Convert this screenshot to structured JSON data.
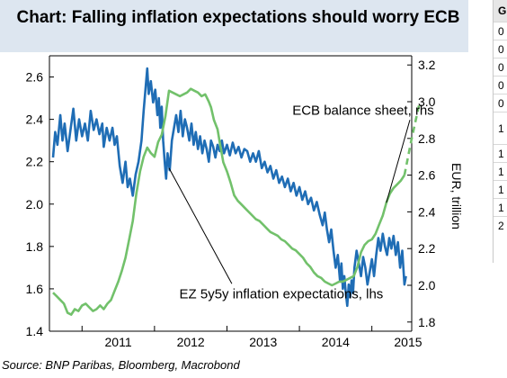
{
  "chart_data": {
    "type": "line",
    "title": "Chart:  Falling inflation expectations should worry ECB",
    "source": "Source: BNP Paribas, Bloomberg, Macrobond",
    "xlabel": "",
    "x_ticks": [
      "2011",
      "2012",
      "2013",
      "2014",
      "2015"
    ],
    "xlim": [
      2010.55,
      2015.55
    ],
    "left_axis": {
      "label": "",
      "ylim": [
        1.4,
        2.7
      ],
      "ticks": [
        1.4,
        1.6,
        1.8,
        2.0,
        2.2,
        2.4,
        2.6
      ]
    },
    "right_axis": {
      "label": "EUR, trillion",
      "ylim": [
        1.75,
        3.25
      ],
      "ticks": [
        1.8,
        2.0,
        2.2,
        2.4,
        2.6,
        2.8,
        3.0,
        3.2
      ]
    },
    "grid": false,
    "series": [
      {
        "name": "EZ 5y5y inflation expectations, lhs",
        "axis": "left",
        "color": "#1f6db5",
        "points": [
          [
            2010.6,
            2.22
          ],
          [
            2010.63,
            2.34
          ],
          [
            2010.66,
            2.28
          ],
          [
            2010.7,
            2.42
          ],
          [
            2010.73,
            2.3
          ],
          [
            2010.76,
            2.38
          ],
          [
            2010.8,
            2.25
          ],
          [
            2010.84,
            2.35
          ],
          [
            2010.88,
            2.45
          ],
          [
            2010.92,
            2.3
          ],
          [
            2010.96,
            2.4
          ],
          [
            2011.0,
            2.32
          ],
          [
            2011.04,
            2.38
          ],
          [
            2011.08,
            2.3
          ],
          [
            2011.12,
            2.44
          ],
          [
            2011.16,
            2.35
          ],
          [
            2011.2,
            2.4
          ],
          [
            2011.24,
            2.33
          ],
          [
            2011.28,
            2.38
          ],
          [
            2011.3,
            2.27
          ],
          [
            2011.34,
            2.36
          ],
          [
            2011.38,
            2.3
          ],
          [
            2011.42,
            2.36
          ],
          [
            2011.45,
            2.28
          ],
          [
            2011.48,
            2.32
          ],
          [
            2011.52,
            2.18
          ],
          [
            2011.56,
            2.1
          ],
          [
            2011.6,
            2.2
          ],
          [
            2011.63,
            2.08
          ],
          [
            2011.66,
            2.12
          ],
          [
            2011.7,
            2.04
          ],
          [
            2011.74,
            2.14
          ],
          [
            2011.78,
            2.2
          ],
          [
            2011.82,
            2.3
          ],
          [
            2011.85,
            2.44
          ],
          [
            2011.88,
            2.56
          ],
          [
            2011.9,
            2.64
          ],
          [
            2011.92,
            2.52
          ],
          [
            2011.95,
            2.58
          ],
          [
            2011.98,
            2.48
          ],
          [
            2012.01,
            2.54
          ],
          [
            2012.04,
            2.42
          ],
          [
            2012.06,
            2.5
          ],
          [
            2012.08,
            2.36
          ],
          [
            2012.1,
            2.46
          ],
          [
            2012.12,
            2.3
          ],
          [
            2012.14,
            2.2
          ],
          [
            2012.16,
            2.12
          ],
          [
            2012.18,
            2.24
          ],
          [
            2012.21,
            2.16
          ],
          [
            2012.24,
            2.3
          ],
          [
            2012.27,
            2.36
          ],
          [
            2012.3,
            2.42
          ],
          [
            2012.33,
            2.34
          ],
          [
            2012.36,
            2.44
          ],
          [
            2012.39,
            2.32
          ],
          [
            2012.42,
            2.4
          ],
          [
            2012.45,
            2.36
          ],
          [
            2012.48,
            2.3
          ],
          [
            2012.51,
            2.38
          ],
          [
            2012.54,
            2.28
          ],
          [
            2012.57,
            2.34
          ],
          [
            2012.6,
            2.26
          ],
          [
            2012.63,
            2.32
          ],
          [
            2012.66,
            2.24
          ],
          [
            2012.69,
            2.3
          ],
          [
            2012.72,
            2.26
          ],
          [
            2012.75,
            2.2
          ],
          [
            2012.78,
            2.3
          ],
          [
            2012.81,
            2.27
          ],
          [
            2012.84,
            2.22
          ],
          [
            2012.87,
            2.28
          ],
          [
            2012.9,
            2.25
          ],
          [
            2012.93,
            2.3
          ],
          [
            2012.96,
            2.24
          ],
          [
            2013.0,
            2.28
          ],
          [
            2013.04,
            2.23
          ],
          [
            2013.08,
            2.29
          ],
          [
            2013.12,
            2.24
          ],
          [
            2013.16,
            2.27
          ],
          [
            2013.2,
            2.22
          ],
          [
            2013.24,
            2.26
          ],
          [
            2013.28,
            2.25
          ],
          [
            2013.32,
            2.2
          ],
          [
            2013.36,
            2.24
          ],
          [
            2013.4,
            2.2
          ],
          [
            2013.44,
            2.25
          ],
          [
            2013.48,
            2.17
          ],
          [
            2013.52,
            2.2
          ],
          [
            2013.56,
            2.15
          ],
          [
            2013.6,
            2.18
          ],
          [
            2013.64,
            2.12
          ],
          [
            2013.68,
            2.16
          ],
          [
            2013.72,
            2.1
          ],
          [
            2013.76,
            2.13
          ],
          [
            2013.8,
            2.08
          ],
          [
            2013.84,
            2.12
          ],
          [
            2013.88,
            2.06
          ],
          [
            2013.92,
            2.1
          ],
          [
            2013.96,
            2.04
          ],
          [
            2014.0,
            2.08
          ],
          [
            2014.04,
            2.02
          ],
          [
            2014.08,
            2.06
          ],
          [
            2014.12,
            2.0
          ],
          [
            2014.16,
            2.03
          ],
          [
            2014.2,
            1.97
          ],
          [
            2014.24,
            2.01
          ],
          [
            2014.28,
            1.95
          ],
          [
            2014.32,
            1.9
          ],
          [
            2014.35,
            1.96
          ],
          [
            2014.38,
            1.88
          ],
          [
            2014.41,
            1.82
          ],
          [
            2014.44,
            1.88
          ],
          [
            2014.47,
            1.78
          ],
          [
            2014.5,
            1.7
          ],
          [
            2014.53,
            1.76
          ],
          [
            2014.56,
            1.64
          ],
          [
            2014.58,
            1.72
          ],
          [
            2014.6,
            1.6
          ],
          [
            2014.62,
            1.66
          ],
          [
            2014.64,
            1.58
          ],
          [
            2014.66,
            1.52
          ],
          [
            2014.68,
            1.62
          ],
          [
            2014.7,
            1.56
          ],
          [
            2014.72,
            1.64
          ],
          [
            2014.74,
            1.58
          ],
          [
            2014.76,
            1.7
          ],
          [
            2014.79,
            1.78
          ],
          [
            2014.82,
            1.72
          ],
          [
            2014.85,
            1.66
          ],
          [
            2014.88,
            1.75
          ],
          [
            2014.91,
            1.7
          ],
          [
            2014.94,
            1.62
          ],
          [
            2014.97,
            1.68
          ],
          [
            2015.0,
            1.74
          ],
          [
            2015.03,
            1.66
          ],
          [
            2015.06,
            1.76
          ],
          [
            2015.09,
            1.84
          ],
          [
            2015.12,
            1.78
          ],
          [
            2015.15,
            1.86
          ],
          [
            2015.18,
            1.8
          ],
          [
            2015.21,
            1.76
          ],
          [
            2015.24,
            1.84
          ],
          [
            2015.27,
            1.79
          ],
          [
            2015.3,
            1.85
          ],
          [
            2015.33,
            1.76
          ],
          [
            2015.36,
            1.82
          ],
          [
            2015.39,
            1.7
          ],
          [
            2015.42,
            1.78
          ],
          [
            2015.45,
            1.62
          ],
          [
            2015.47,
            1.66
          ]
        ]
      },
      {
        "name": "ECB balance sheet, rhs",
        "axis": "right",
        "color": "#72c16b",
        "points": [
          [
            2010.6,
            1.96
          ],
          [
            2010.65,
            1.94
          ],
          [
            2010.7,
            1.92
          ],
          [
            2010.75,
            1.9
          ],
          [
            2010.8,
            1.85
          ],
          [
            2010.85,
            1.84
          ],
          [
            2010.9,
            1.87
          ],
          [
            2010.95,
            1.86
          ],
          [
            2011.0,
            1.89
          ],
          [
            2011.05,
            1.9
          ],
          [
            2011.1,
            1.88
          ],
          [
            2011.15,
            1.86
          ],
          [
            2011.2,
            1.87
          ],
          [
            2011.25,
            1.89
          ],
          [
            2011.3,
            1.87
          ],
          [
            2011.35,
            1.9
          ],
          [
            2011.4,
            1.92
          ],
          [
            2011.45,
            1.97
          ],
          [
            2011.5,
            2.02
          ],
          [
            2011.55,
            2.08
          ],
          [
            2011.6,
            2.15
          ],
          [
            2011.65,
            2.25
          ],
          [
            2011.7,
            2.35
          ],
          [
            2011.75,
            2.5
          ],
          [
            2011.8,
            2.62
          ],
          [
            2011.85,
            2.7
          ],
          [
            2011.9,
            2.75
          ],
          [
            2011.95,
            2.72
          ],
          [
            2012.0,
            2.7
          ],
          [
            2012.05,
            2.78
          ],
          [
            2012.1,
            2.82
          ],
          [
            2012.15,
            2.92
          ],
          [
            2012.2,
            3.06
          ],
          [
            2012.25,
            3.05
          ],
          [
            2012.3,
            3.04
          ],
          [
            2012.35,
            3.03
          ],
          [
            2012.4,
            3.04
          ],
          [
            2012.45,
            3.05
          ],
          [
            2012.5,
            3.07
          ],
          [
            2012.55,
            3.06
          ],
          [
            2012.6,
            3.05
          ],
          [
            2012.65,
            3.03
          ],
          [
            2012.7,
            3.04
          ],
          [
            2012.75,
            3.0
          ],
          [
            2012.78,
            2.97
          ],
          [
            2012.82,
            2.9
          ],
          [
            2012.87,
            2.85
          ],
          [
            2012.9,
            2.78
          ],
          [
            2012.95,
            2.67
          ],
          [
            2013.0,
            2.62
          ],
          [
            2013.05,
            2.56
          ],
          [
            2013.1,
            2.49
          ],
          [
            2013.15,
            2.46
          ],
          [
            2013.2,
            2.44
          ],
          [
            2013.25,
            2.42
          ],
          [
            2013.3,
            2.4
          ],
          [
            2013.35,
            2.38
          ],
          [
            2013.4,
            2.36
          ],
          [
            2013.45,
            2.35
          ],
          [
            2013.5,
            2.33
          ],
          [
            2013.55,
            2.31
          ],
          [
            2013.6,
            2.29
          ],
          [
            2013.65,
            2.28
          ],
          [
            2013.7,
            2.27
          ],
          [
            2013.75,
            2.25
          ],
          [
            2013.8,
            2.24
          ],
          [
            2013.85,
            2.22
          ],
          [
            2013.9,
            2.2
          ],
          [
            2013.95,
            2.19
          ],
          [
            2014.0,
            2.17
          ],
          [
            2014.05,
            2.15
          ],
          [
            2014.1,
            2.12
          ],
          [
            2014.15,
            2.1
          ],
          [
            2014.2,
            2.07
          ],
          [
            2014.25,
            2.05
          ],
          [
            2014.3,
            2.04
          ],
          [
            2014.35,
            2.02
          ],
          [
            2014.4,
            2.01
          ],
          [
            2014.45,
            2.0
          ],
          [
            2014.5,
            2.01
          ],
          [
            2014.55,
            2.02
          ],
          [
            2014.6,
            2.02
          ],
          [
            2014.65,
            2.03
          ],
          [
            2014.7,
            2.04
          ],
          [
            2014.75,
            2.05
          ],
          [
            2014.8,
            2.1
          ],
          [
            2014.85,
            2.18
          ],
          [
            2014.9,
            2.22
          ],
          [
            2014.95,
            2.24
          ],
          [
            2015.0,
            2.25
          ],
          [
            2015.05,
            2.28
          ],
          [
            2015.1,
            2.33
          ],
          [
            2015.15,
            2.38
          ],
          [
            2015.2,
            2.45
          ],
          [
            2015.25,
            2.5
          ],
          [
            2015.3,
            2.53
          ],
          [
            2015.35,
            2.55
          ],
          [
            2015.4,
            2.57
          ],
          [
            2015.45,
            2.6
          ]
        ]
      },
      {
        "name": "",
        "axis": "right",
        "style": "dashed",
        "color": "#72c16b",
        "points": [
          [
            2015.45,
            2.6
          ],
          [
            2015.55,
            2.8
          ],
          [
            2015.65,
            2.98
          ]
        ]
      }
    ],
    "annotations": [
      {
        "text": "ECB balance sheet, rhs",
        "x": 2014.88,
        "y_rhs": 2.93,
        "anchor": "middle",
        "arrow_to": [
          2015.2,
          2.45
        ]
      },
      {
        "text": "EZ 5y5y inflation expectations, lhs",
        "x": 2013.75,
        "y_rhs": 1.93,
        "anchor": "middle",
        "arrow_to": [
          2012.2,
          2.17
        ]
      }
    ]
  },
  "sidebar_table": {
    "header": "G",
    "rows": [
      "0",
      "0",
      "0",
      "0",
      "0",
      "1",
      "1",
      "1",
      "1",
      "1",
      "2"
    ]
  }
}
